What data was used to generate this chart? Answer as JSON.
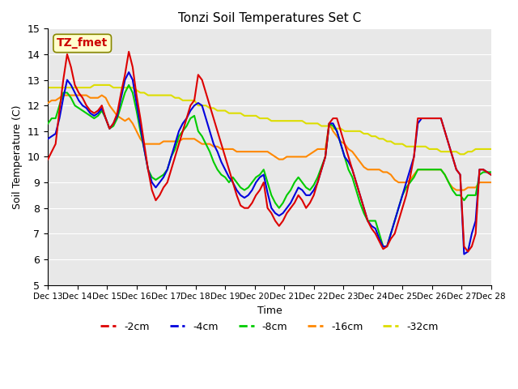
{
  "title": "Tonzi Soil Temperatures Set C",
  "xlabel": "Time",
  "ylabel": "Soil Temperature (C)",
  "ylim": [
    5.0,
    15.0
  ],
  "yticks": [
    5.0,
    6.0,
    7.0,
    8.0,
    9.0,
    10.0,
    11.0,
    12.0,
    13.0,
    14.0,
    15.0
  ],
  "bg_color": "#e8e8e8",
  "annotation_label": "TZ_fmet",
  "annotation_color": "#cc0000",
  "annotation_bg": "#ffffcc",
  "series_colors": {
    "-2cm": "#dd0000",
    "-4cm": "#0000dd",
    "-8cm": "#00cc00",
    "-16cm": "#ff8800",
    "-32cm": "#dddd00"
  },
  "xtick_labels": [
    "Dec 13",
    "Dec 14",
    "Dec 15",
    "Dec 16",
    "Dec 17",
    "Dec 18",
    "Dec 19",
    "Dec 20",
    "Dec 21",
    "Dec 22",
    "Dec 23",
    "Dec 24",
    "Dec 25",
    "Dec 26",
    "Dec 27",
    "Dec 28"
  ],
  "x": [
    0,
    1,
    2,
    3,
    4,
    5,
    6,
    7,
    8,
    9,
    10,
    11,
    12,
    13,
    14,
    15,
    16,
    17,
    18,
    19,
    20,
    21,
    22,
    23,
    24,
    25,
    26,
    27,
    28,
    29,
    30,
    31,
    32,
    33,
    34,
    35,
    36,
    37,
    38,
    39,
    40,
    41,
    42,
    43,
    44,
    45,
    46,
    47,
    48,
    49,
    50,
    51,
    52,
    53,
    54,
    55,
    56,
    57,
    58,
    59,
    60,
    61,
    62,
    63,
    64,
    65,
    66,
    67,
    68,
    69,
    70,
    71,
    72,
    73,
    74,
    75,
    76,
    77,
    78,
    79,
    80,
    81,
    82,
    83,
    84,
    85,
    86,
    87,
    88,
    89,
    90,
    91,
    92,
    93,
    94,
    95,
    96,
    97,
    98,
    99,
    100,
    101,
    102,
    103,
    104,
    105,
    106,
    107,
    108,
    109,
    110,
    111,
    112,
    113,
    114,
    115
  ],
  "y_2cm": [
    9.9,
    10.2,
    10.5,
    11.8,
    13.0,
    14.0,
    13.5,
    12.8,
    12.5,
    12.3,
    12.0,
    11.8,
    11.7,
    11.8,
    12.0,
    11.5,
    11.1,
    11.3,
    11.7,
    12.5,
    13.2,
    14.1,
    13.5,
    12.4,
    11.5,
    10.5,
    9.5,
    8.7,
    8.3,
    8.5,
    8.8,
    9.0,
    9.5,
    10.0,
    10.5,
    11.0,
    11.5,
    12.0,
    12.2,
    13.2,
    13.0,
    12.5,
    12.0,
    11.5,
    11.0,
    10.5,
    10.0,
    9.5,
    9.0,
    8.5,
    8.1,
    8.0,
    8.0,
    8.2,
    8.5,
    8.7,
    9.0,
    8.0,
    7.8,
    7.5,
    7.3,
    7.5,
    7.8,
    8.0,
    8.2,
    8.5,
    8.3,
    8.0,
    8.2,
    8.5,
    9.0,
    9.5,
    10.0,
    11.3,
    11.5,
    11.5,
    11.0,
    10.5,
    10.0,
    9.5,
    9.0,
    8.5,
    8.0,
    7.5,
    7.2,
    7.0,
    6.7,
    6.4,
    6.5,
    6.8,
    7.0,
    7.5,
    8.0,
    8.5,
    9.2,
    10.0,
    11.5,
    11.5,
    11.5,
    11.5,
    11.5,
    11.5,
    11.5,
    11.0,
    10.5,
    10.0,
    9.5,
    9.3,
    6.5,
    6.3,
    6.5,
    7.0,
    9.5,
    9.5,
    9.4,
    9.3
  ],
  "y_4cm": [
    10.7,
    10.8,
    10.9,
    11.5,
    12.3,
    13.0,
    12.8,
    12.5,
    12.2,
    12.0,
    11.9,
    11.7,
    11.6,
    11.7,
    11.9,
    11.5,
    11.1,
    11.3,
    11.6,
    12.3,
    13.0,
    13.3,
    13.0,
    12.1,
    11.2,
    10.3,
    9.5,
    9.0,
    8.8,
    9.0,
    9.2,
    9.5,
    10.0,
    10.5,
    11.0,
    11.3,
    11.5,
    11.8,
    12.0,
    12.1,
    12.0,
    11.5,
    11.0,
    10.5,
    10.2,
    9.8,
    9.5,
    9.2,
    9.0,
    8.7,
    8.5,
    8.4,
    8.5,
    8.7,
    9.0,
    9.2,
    9.3,
    8.6,
    8.0,
    7.8,
    7.7,
    7.8,
    8.0,
    8.2,
    8.5,
    8.8,
    8.7,
    8.5,
    8.5,
    8.7,
    9.0,
    9.5,
    10.0,
    11.3,
    11.3,
    11.0,
    10.5,
    10.0,
    9.8,
    9.5,
    9.0,
    8.5,
    8.0,
    7.5,
    7.3,
    7.2,
    6.8,
    6.5,
    6.5,
    7.0,
    7.5,
    8.0,
    8.5,
    9.0,
    9.5,
    10.0,
    11.3,
    11.5,
    11.5,
    11.5,
    11.5,
    11.5,
    11.5,
    11.0,
    10.5,
    10.0,
    9.5,
    9.3,
    6.2,
    6.3,
    7.0,
    7.5,
    9.5,
    9.5,
    9.4,
    9.3
  ],
  "y_8cm": [
    11.3,
    11.5,
    11.5,
    12.0,
    12.5,
    12.5,
    12.3,
    12.0,
    11.9,
    11.8,
    11.7,
    11.6,
    11.5,
    11.6,
    11.8,
    11.5,
    11.1,
    11.2,
    11.5,
    12.0,
    12.5,
    12.8,
    12.5,
    11.8,
    11.0,
    10.3,
    9.5,
    9.2,
    9.1,
    9.2,
    9.3,
    9.5,
    10.0,
    10.3,
    10.8,
    11.0,
    11.2,
    11.5,
    11.6,
    11.0,
    10.8,
    10.5,
    10.2,
    9.8,
    9.5,
    9.3,
    9.2,
    9.0,
    9.2,
    9.0,
    8.8,
    8.7,
    8.8,
    9.0,
    9.2,
    9.3,
    9.5,
    9.0,
    8.5,
    8.2,
    8.0,
    8.2,
    8.5,
    8.7,
    9.0,
    9.2,
    9.0,
    8.8,
    8.7,
    8.9,
    9.2,
    9.6,
    10.0,
    11.3,
    11.2,
    11.0,
    10.5,
    10.0,
    9.5,
    9.2,
    8.7,
    8.2,
    7.8,
    7.5,
    7.5,
    7.5,
    7.0,
    6.5,
    6.5,
    7.0,
    7.5,
    8.0,
    8.5,
    8.8,
    9.0,
    9.2,
    9.5,
    9.5,
    9.5,
    9.5,
    9.5,
    9.5,
    9.5,
    9.3,
    9.0,
    8.7,
    8.5,
    8.5,
    8.3,
    8.5,
    8.5,
    8.5,
    9.3,
    9.4,
    9.4,
    9.4
  ],
  "y_16cm": [
    12.1,
    12.2,
    12.2,
    12.3,
    12.4,
    12.4,
    12.4,
    12.4,
    12.4,
    12.4,
    12.4,
    12.3,
    12.3,
    12.3,
    12.4,
    12.3,
    12.0,
    11.8,
    11.6,
    11.5,
    11.4,
    11.5,
    11.3,
    11.0,
    10.7,
    10.5,
    10.5,
    10.5,
    10.5,
    10.5,
    10.6,
    10.6,
    10.6,
    10.6,
    10.6,
    10.7,
    10.7,
    10.7,
    10.7,
    10.6,
    10.5,
    10.5,
    10.5,
    10.4,
    10.4,
    10.3,
    10.3,
    10.3,
    10.3,
    10.2,
    10.2,
    10.2,
    10.2,
    10.2,
    10.2,
    10.2,
    10.2,
    10.2,
    10.1,
    10.0,
    9.9,
    9.9,
    10.0,
    10.0,
    10.0,
    10.0,
    10.0,
    10.0,
    10.1,
    10.2,
    10.3,
    10.3,
    10.3,
    11.3,
    11.0,
    10.8,
    10.6,
    10.5,
    10.3,
    10.2,
    10.0,
    9.8,
    9.6,
    9.5,
    9.5,
    9.5,
    9.5,
    9.4,
    9.4,
    9.3,
    9.1,
    9.0,
    9.0,
    9.0,
    9.1,
    9.3,
    9.5,
    9.5,
    9.5,
    9.5,
    9.5,
    9.5,
    9.5,
    9.3,
    9.0,
    8.8,
    8.7,
    8.7,
    8.7,
    8.8,
    8.8,
    8.8,
    9.0,
    9.0,
    9.0,
    9.0
  ],
  "y_32cm": [
    12.7,
    12.7,
    12.7,
    12.7,
    12.7,
    12.7,
    12.7,
    12.7,
    12.7,
    12.7,
    12.7,
    12.7,
    12.8,
    12.8,
    12.8,
    12.8,
    12.8,
    12.7,
    12.7,
    12.7,
    12.7,
    12.7,
    12.7,
    12.6,
    12.5,
    12.5,
    12.4,
    12.4,
    12.4,
    12.4,
    12.4,
    12.4,
    12.4,
    12.3,
    12.3,
    12.2,
    12.2,
    12.2,
    12.2,
    12.0,
    12.0,
    12.0,
    11.9,
    11.9,
    11.8,
    11.8,
    11.8,
    11.7,
    11.7,
    11.7,
    11.7,
    11.6,
    11.6,
    11.6,
    11.6,
    11.5,
    11.5,
    11.5,
    11.4,
    11.4,
    11.4,
    11.4,
    11.4,
    11.4,
    11.4,
    11.4,
    11.4,
    11.3,
    11.3,
    11.3,
    11.3,
    11.2,
    11.2,
    11.2,
    11.1,
    11.1,
    11.1,
    11.0,
    11.0,
    11.0,
    11.0,
    11.0,
    10.9,
    10.9,
    10.8,
    10.8,
    10.7,
    10.7,
    10.6,
    10.6,
    10.5,
    10.5,
    10.5,
    10.4,
    10.4,
    10.4,
    10.4,
    10.4,
    10.4,
    10.3,
    10.3,
    10.3,
    10.2,
    10.2,
    10.2,
    10.2,
    10.2,
    10.1,
    10.1,
    10.2,
    10.2,
    10.3,
    10.3,
    10.3,
    10.3,
    10.3
  ]
}
